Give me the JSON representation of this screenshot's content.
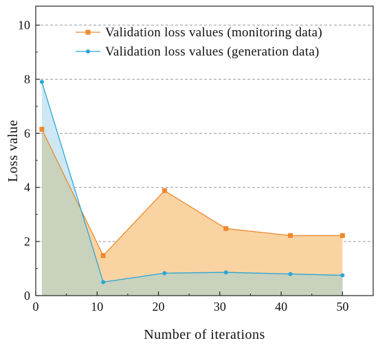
{
  "chart_data": {
    "type": "area",
    "x": [
      1,
      11,
      21,
      31,
      41.5,
      50
    ],
    "series": [
      {
        "name": "Validation loss values (monitoring data)",
        "values": [
          6.15,
          1.48,
          3.88,
          2.48,
          2.22,
          2.22
        ],
        "line_color": "#ED8A2E",
        "fill_color": "#FAD3A3",
        "marker": "square"
      },
      {
        "name": "Validation loss values (generation data)",
        "values": [
          7.9,
          0.5,
          0.83,
          0.86,
          0.8,
          0.75
        ],
        "line_color": "#2AA5D8",
        "fill_color": "#CDE8F3",
        "marker": "circle"
      }
    ],
    "overlap_fill_color": "#C8D2BC",
    "xlabel": "Number of iterations",
    "ylabel": "Loss  value",
    "xlim": [
      0,
      55
    ],
    "ylim": [
      0,
      10.7
    ],
    "x_ticks": [
      0,
      10,
      20,
      30,
      40,
      50
    ],
    "y_ticks": [
      0,
      2,
      4,
      6,
      8,
      10
    ],
    "grid": "horizontal dashed",
    "legend_position": "top-right"
  }
}
